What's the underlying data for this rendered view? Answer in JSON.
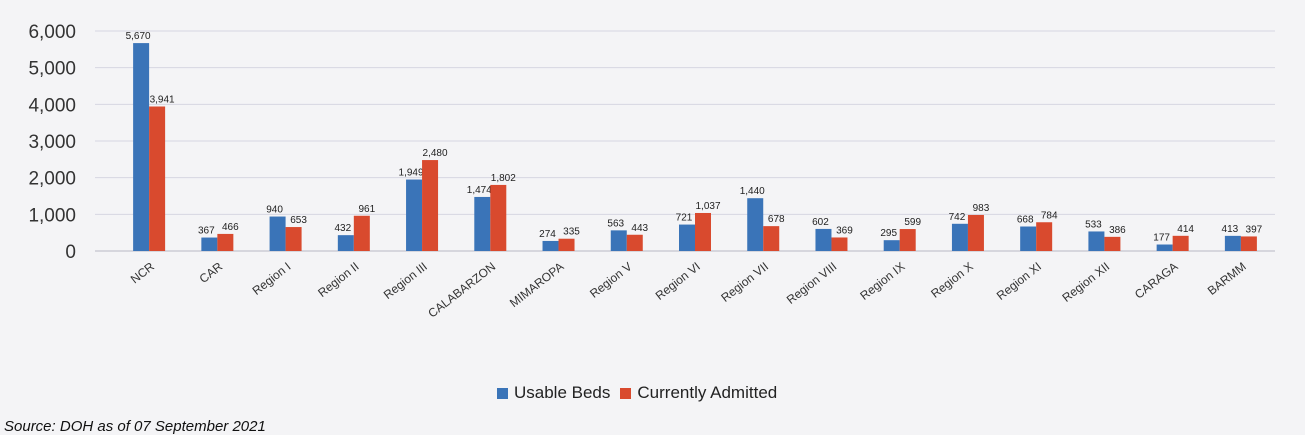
{
  "chart_data": {
    "type": "bar",
    "categories": [
      "NCR",
      "CAR",
      "Region I",
      "Region II",
      "Region III",
      "CALABARZON",
      "MIMAROPA",
      "Region V",
      "Region VI",
      "Region VII",
      "Region VIII",
      "Region IX",
      "Region X",
      "Region XI",
      "Region XII",
      "CARAGA",
      "BARMM"
    ],
    "series": [
      {
        "name": "Usable Beds",
        "color": "#3a74b8",
        "values": [
          5670,
          367,
          940,
          432,
          1949,
          1474,
          274,
          563,
          721,
          1440,
          602,
          295,
          742,
          668,
          533,
          177,
          413
        ],
        "labels": [
          "5,670",
          "367",
          "940",
          "432",
          "1,949",
          "1,474",
          "274",
          "563",
          "721",
          "1,440",
          "602",
          "295",
          "742",
          "668",
          "533",
          "177",
          "413"
        ]
      },
      {
        "name": "Currently Admitted",
        "color": "#d94a2e",
        "values": [
          3941,
          466,
          653,
          961,
          2480,
          1802,
          335,
          443,
          1037,
          678,
          369,
          599,
          983,
          784,
          386,
          414,
          397
        ],
        "labels": [
          "3,941",
          "466",
          "653",
          "961",
          "2,480",
          "1,802",
          "335",
          "443",
          "1,037",
          "678",
          "369",
          "599",
          "983",
          "784",
          "386",
          "414",
          "397"
        ]
      }
    ],
    "yticks": [
      "6,000",
      "5,000",
      "4,000",
      "3,000",
      "2,000",
      "1,000",
      "0"
    ],
    "ylim": [
      0,
      6000
    ],
    "grid": true,
    "legend_position": "bottom"
  },
  "source": "Source: DOH as of 07 September 2021"
}
